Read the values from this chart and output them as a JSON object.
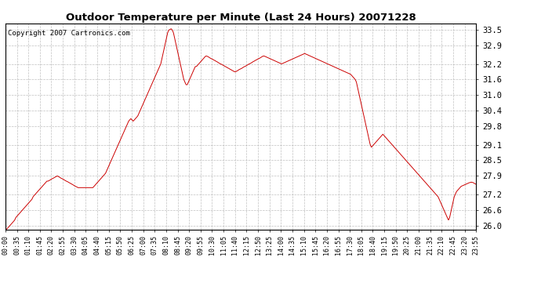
{
  "title": "Outdoor Temperature per Minute (Last 24 Hours) 20071228",
  "copyright": "Copyright 2007 Cartronics.com",
  "line_color": "#cc0000",
  "bg_color": "#ffffff",
  "grid_color": "#b0b0b0",
  "yticks": [
    26.0,
    26.6,
    27.2,
    27.9,
    28.5,
    29.1,
    29.8,
    30.4,
    31.0,
    31.6,
    32.2,
    32.9,
    33.5
  ],
  "ylim": [
    25.85,
    33.75
  ],
  "xtick_labels": [
    "00:00",
    "00:35",
    "01:10",
    "01:45",
    "02:20",
    "02:55",
    "03:30",
    "04:05",
    "04:40",
    "05:15",
    "05:50",
    "06:25",
    "07:00",
    "07:35",
    "08:10",
    "08:45",
    "09:20",
    "09:55",
    "10:30",
    "11:05",
    "11:40",
    "12:15",
    "12:50",
    "13:25",
    "14:00",
    "14:35",
    "15:10",
    "15:45",
    "16:20",
    "16:55",
    "17:30",
    "18:05",
    "18:40",
    "19:15",
    "19:50",
    "20:25",
    "21:00",
    "21:35",
    "22:10",
    "22:45",
    "23:20",
    "23:55"
  ],
  "temp_data": [
    25.9,
    25.85,
    25.9,
    25.95,
    26.0,
    26.05,
    26.1,
    26.15,
    26.2,
    26.3,
    26.35,
    26.4,
    26.45,
    26.5,
    26.55,
    26.6,
    26.65,
    26.7,
    26.75,
    26.8,
    26.85,
    26.9,
    26.95,
    27.0,
    27.1,
    27.15,
    27.2,
    27.25,
    27.3,
    27.35,
    27.4,
    27.45,
    27.5,
    27.55,
    27.6,
    27.65,
    27.7,
    27.7,
    27.72,
    27.75,
    27.78,
    27.8,
    27.82,
    27.85,
    27.87,
    27.9,
    27.88,
    27.85,
    27.82,
    27.8,
    27.78,
    27.75,
    27.72,
    27.7,
    27.68,
    27.65,
    27.63,
    27.6,
    27.58,
    27.55,
    27.52,
    27.5,
    27.48,
    27.45,
    27.45,
    27.45,
    27.45,
    27.45,
    27.45,
    27.45,
    27.45,
    27.45,
    27.45,
    27.45,
    27.45,
    27.45,
    27.45,
    27.5,
    27.55,
    27.6,
    27.65,
    27.7,
    27.75,
    27.8,
    27.85,
    27.9,
    27.95,
    28.0,
    28.1,
    28.2,
    28.3,
    28.4,
    28.5,
    28.6,
    28.7,
    28.8,
    28.9,
    29.0,
    29.1,
    29.2,
    29.3,
    29.4,
    29.5,
    29.6,
    29.7,
    29.8,
    29.9,
    30.0,
    30.05,
    30.1,
    30.05,
    30.0,
    30.05,
    30.1,
    30.15,
    30.2,
    30.3,
    30.4,
    30.5,
    30.6,
    30.7,
    30.8,
    30.9,
    31.0,
    31.1,
    31.2,
    31.3,
    31.4,
    31.5,
    31.6,
    31.7,
    31.8,
    31.9,
    32.0,
    32.1,
    32.2,
    32.4,
    32.6,
    32.8,
    33.0,
    33.2,
    33.4,
    33.5,
    33.52,
    33.55,
    33.5,
    33.4,
    33.2,
    33.0,
    32.8,
    32.6,
    32.4,
    32.2,
    32.0,
    31.8,
    31.6,
    31.5,
    31.4,
    31.4,
    31.5,
    31.6,
    31.7,
    31.8,
    31.9,
    32.0,
    32.1,
    32.1,
    32.15,
    32.2,
    32.25,
    32.3,
    32.35,
    32.4,
    32.45,
    32.5,
    32.5,
    32.48,
    32.45,
    32.42,
    32.4,
    32.38,
    32.35,
    32.33,
    32.3,
    32.28,
    32.25,
    32.22,
    32.2,
    32.18,
    32.15,
    32.13,
    32.1,
    32.08,
    32.05,
    32.03,
    32.0,
    31.98,
    31.95,
    31.93,
    31.9,
    31.9,
    31.92,
    31.95,
    31.98,
    32.0,
    32.02,
    32.05,
    32.08,
    32.1,
    32.12,
    32.15,
    32.18,
    32.2,
    32.22,
    32.25,
    32.28,
    32.3,
    32.33,
    32.35,
    32.38,
    32.4,
    32.42,
    32.45,
    32.48,
    32.5,
    32.5,
    32.48,
    32.46,
    32.44,
    32.42,
    32.4,
    32.38,
    32.36,
    32.34,
    32.32,
    32.3,
    32.28,
    32.26,
    32.24,
    32.22,
    32.2,
    32.22,
    32.24,
    32.26,
    32.28,
    32.3,
    32.32,
    32.34,
    32.36,
    32.38,
    32.4,
    32.42,
    32.44,
    32.46,
    32.48,
    32.5,
    32.52,
    32.54,
    32.56,
    32.58,
    32.6,
    32.58,
    32.56,
    32.54,
    32.52,
    32.5,
    32.48,
    32.46,
    32.44,
    32.42,
    32.4,
    32.38,
    32.36,
    32.34,
    32.32,
    32.3,
    32.28,
    32.26,
    32.24,
    32.22,
    32.2,
    32.18,
    32.16,
    32.14,
    32.12,
    32.1,
    32.08,
    32.06,
    32.04,
    32.02,
    32.0,
    31.98,
    31.96,
    31.94,
    31.92,
    31.9,
    31.88,
    31.86,
    31.84,
    31.82,
    31.8,
    31.75,
    31.7,
    31.65,
    31.6,
    31.5,
    31.3,
    31.1,
    30.9,
    30.7,
    30.5,
    30.3,
    30.1,
    29.9,
    29.7,
    29.5,
    29.3,
    29.1,
    29.0,
    29.05,
    29.1,
    29.15,
    29.2,
    29.25,
    29.3,
    29.35,
    29.4,
    29.45,
    29.5,
    29.45,
    29.4,
    29.35,
    29.3,
    29.25,
    29.2,
    29.15,
    29.1,
    29.05,
    29.0,
    28.95,
    28.9,
    28.85,
    28.8,
    28.75,
    28.7,
    28.65,
    28.6,
    28.55,
    28.5,
    28.45,
    28.4,
    28.35,
    28.3,
    28.25,
    28.2,
    28.15,
    28.1,
    28.05,
    28.0,
    27.95,
    27.9,
    27.85,
    27.8,
    27.75,
    27.7,
    27.65,
    27.6,
    27.55,
    27.5,
    27.45,
    27.4,
    27.35,
    27.3,
    27.25,
    27.2,
    27.15,
    27.1,
    27.0,
    26.9,
    26.8,
    26.7,
    26.6,
    26.5,
    26.4,
    26.3,
    26.2,
    26.3,
    26.5,
    26.7,
    26.9,
    27.1,
    27.2,
    27.3,
    27.35,
    27.4,
    27.45,
    27.5,
    27.52,
    27.54,
    27.56,
    27.58,
    27.6,
    27.62,
    27.64,
    27.65,
    27.66,
    27.65,
    27.63,
    27.6,
    27.58
  ]
}
